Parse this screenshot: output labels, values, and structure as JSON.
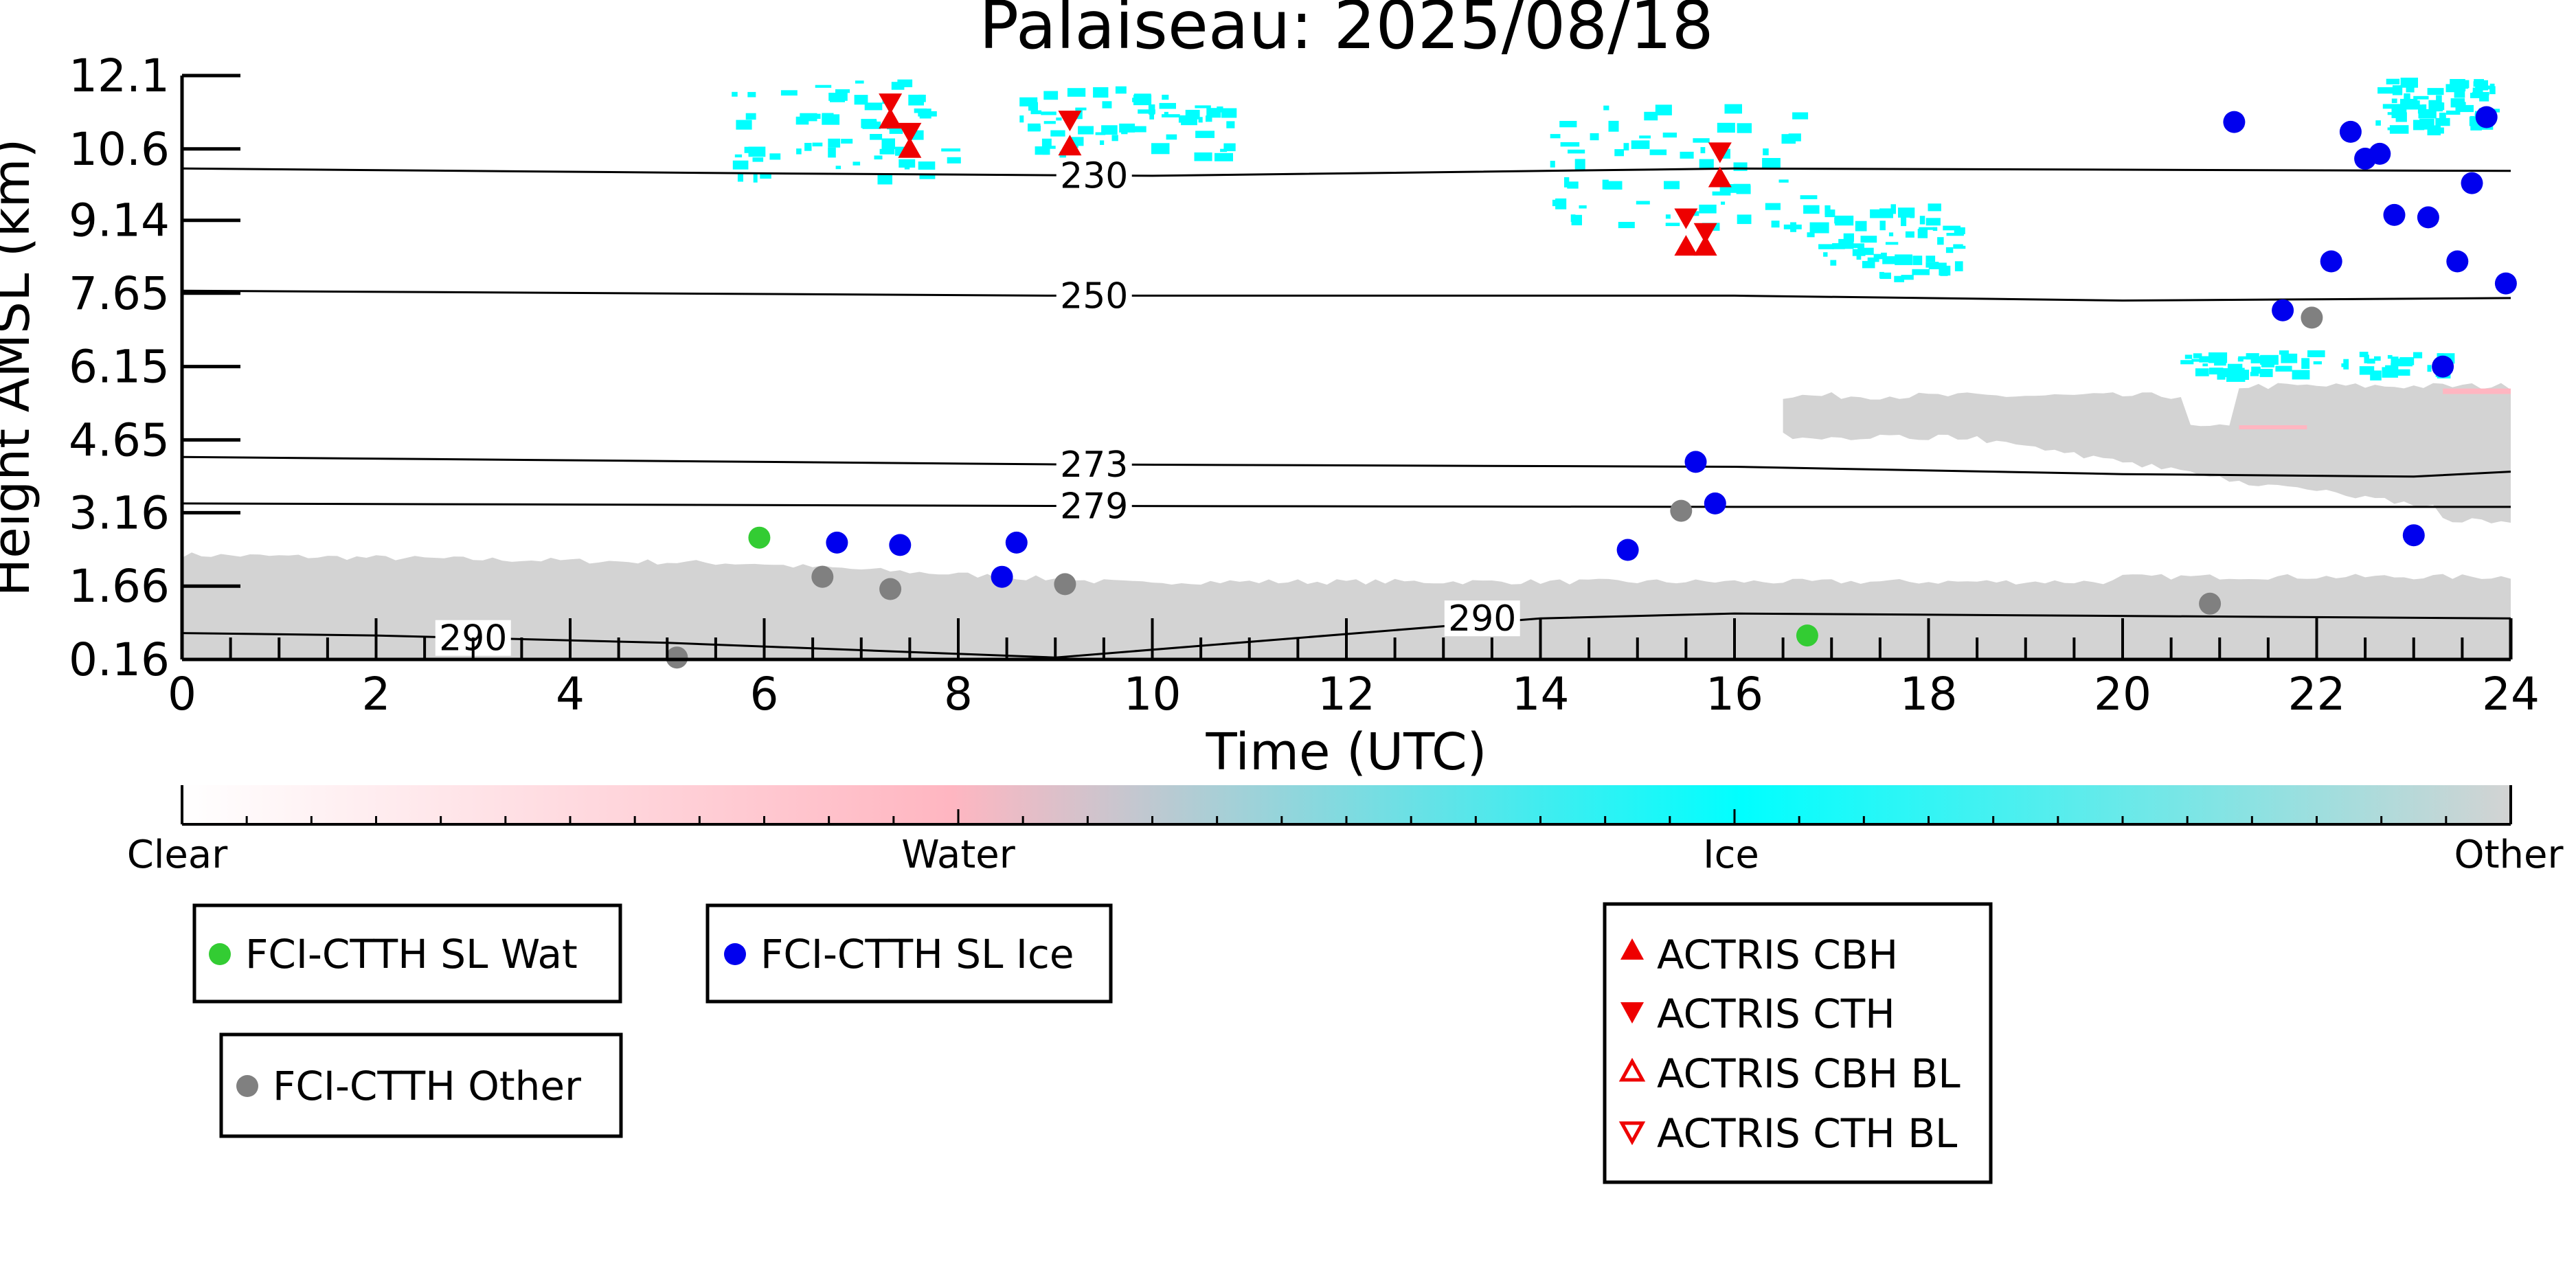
{
  "chart_data": {
    "type": "scatter",
    "title": "Palaiseau: 2025/08/18",
    "xlabel": "Time (UTC)",
    "ylabel": "Height AMSL (km)",
    "x_ticks": [
      0,
      2,
      4,
      6,
      8,
      10,
      12,
      14,
      16,
      18,
      20,
      22,
      24
    ],
    "y_ticks": [
      "0.16",
      "1.66",
      "3.16",
      "4.65",
      "6.15",
      "7.65",
      "9.14",
      "10.6",
      "12.1"
    ],
    "xlim": [
      0,
      24
    ],
    "ylim": [
      0.16,
      12.1
    ],
    "colorbar": {
      "labels": [
        "Clear",
        "Water",
        "Ice",
        "Other"
      ],
      "colors": [
        "#ffffff",
        "#ffb6c1",
        "#00ffff",
        "#d3d3d3"
      ]
    },
    "isotherms": [
      {
        "label": "230",
        "x": [
          0,
          6,
          10,
          16,
          24
        ],
        "y": [
          10.2,
          10.1,
          10.05,
          10.2,
          10.15
        ]
      },
      {
        "label": "250",
        "x": [
          0,
          9,
          16,
          20,
          24
        ],
        "y": [
          7.7,
          7.6,
          7.6,
          7.5,
          7.55
        ]
      },
      {
        "label": "273",
        "x": [
          0,
          6,
          9,
          16,
          20,
          23,
          24
        ],
        "y": [
          4.3,
          4.2,
          4.15,
          4.1,
          3.95,
          3.9,
          4.0
        ]
      },
      {
        "label": "279",
        "x": [
          0,
          9,
          16,
          24
        ],
        "y": [
          3.35,
          3.3,
          3.28,
          3.28
        ]
      },
      {
        "label": "290",
        "x": [
          0,
          2,
          5,
          9,
          14,
          16,
          24
        ],
        "y": [
          0.7,
          0.65,
          0.5,
          0.2,
          1.0,
          1.1,
          1.0
        ]
      }
    ],
    "series": [
      {
        "name": "FCI-CTTH SL Wat",
        "color": "#33cc33",
        "marker": "circle",
        "points": [
          [
            5.95,
            2.65
          ],
          [
            16.75,
            0.65
          ]
        ]
      },
      {
        "name": "FCI-CTTH SL Ice",
        "color": "#0000ee",
        "marker": "circle",
        "points": [
          [
            6.75,
            2.55
          ],
          [
            7.4,
            2.5
          ],
          [
            8.45,
            1.85
          ],
          [
            8.6,
            2.55
          ],
          [
            14.9,
            2.4
          ],
          [
            15.6,
            4.2
          ],
          [
            15.8,
            3.35
          ],
          [
            21.15,
            11.15
          ],
          [
            21.65,
            7.3
          ],
          [
            22.15,
            8.3
          ],
          [
            22.35,
            10.95
          ],
          [
            22.5,
            10.4
          ],
          [
            22.65,
            10.5
          ],
          [
            22.8,
            9.25
          ],
          [
            23.0,
            2.7
          ],
          [
            23.15,
            9.2
          ],
          [
            23.3,
            6.15
          ],
          [
            23.45,
            8.3
          ],
          [
            23.6,
            9.9
          ],
          [
            23.75,
            11.25
          ],
          [
            23.95,
            7.85
          ]
        ]
      },
      {
        "name": "FCI-CTTH Other",
        "color": "#808080",
        "marker": "circle",
        "points": [
          [
            5.1,
            0.2
          ],
          [
            6.6,
            1.85
          ],
          [
            7.3,
            1.6
          ],
          [
            9.1,
            1.7
          ],
          [
            15.45,
            3.2
          ],
          [
            20.9,
            1.3
          ],
          [
            21.95,
            7.15
          ]
        ]
      },
      {
        "name": "ACTRIS CBH",
        "color": "#ee0000",
        "marker": "triangle-up",
        "points": [
          [
            7.3,
            11.2
          ],
          [
            7.5,
            10.6
          ],
          [
            9.15,
            10.65
          ],
          [
            15.5,
            8.6
          ],
          [
            15.7,
            8.6
          ],
          [
            15.85,
            10.0
          ]
        ]
      },
      {
        "name": "ACTRIS CTH",
        "color": "#ee0000",
        "marker": "triangle-down",
        "points": [
          [
            7.3,
            11.55
          ],
          [
            7.5,
            10.95
          ],
          [
            9.15,
            11.2
          ],
          [
            15.5,
            9.2
          ],
          [
            15.7,
            8.9
          ],
          [
            15.85,
            10.55
          ]
        ]
      },
      {
        "name": "ACTRIS CBH BL",
        "color": "#ee0000",
        "marker": "triangle-up-open",
        "points": []
      },
      {
        "name": "ACTRIS CTH BL",
        "color": "#ee0000",
        "marker": "triangle-down-open",
        "points": []
      }
    ]
  }
}
